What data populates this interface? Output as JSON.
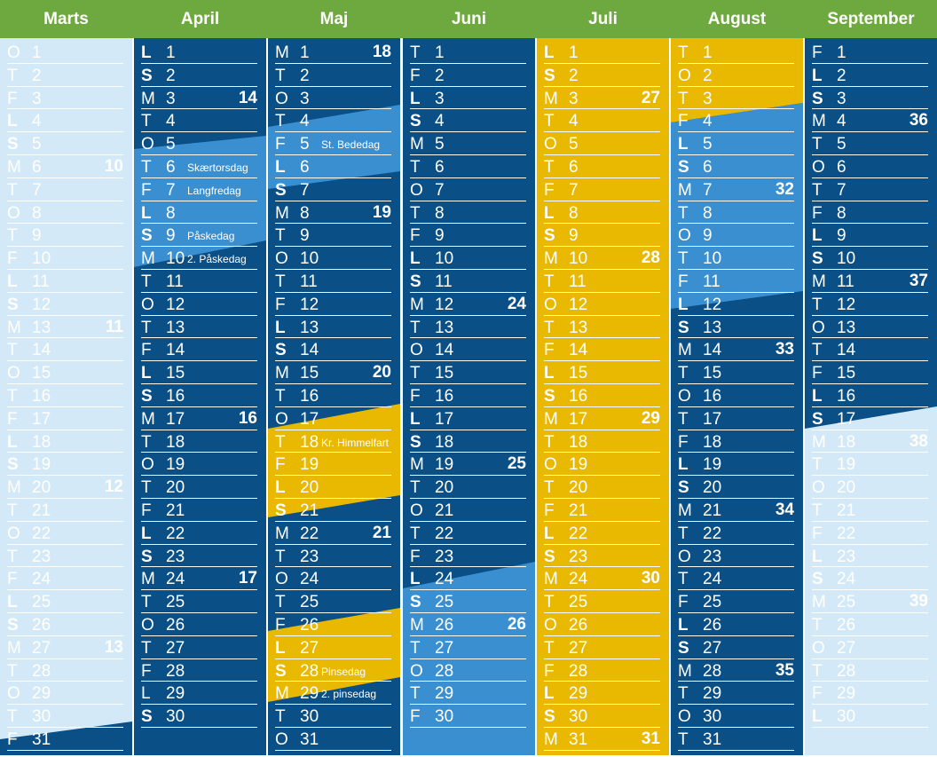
{
  "colors": {
    "green_header": "#6ea93f",
    "dark_blue": "#0a4f86",
    "mid_blue": "#3a8fd0",
    "light_blue": "#d3e9f7",
    "yellow": "#e9b800",
    "white": "#ffffff"
  },
  "months": [
    {
      "name": "Marts",
      "bg": "light",
      "days": [
        {
          "wd": "O",
          "d": "1"
        },
        {
          "wd": "T",
          "d": "2"
        },
        {
          "wd": "F",
          "d": "3"
        },
        {
          "wd": "L",
          "d": "4",
          "b": true
        },
        {
          "wd": "S",
          "d": "5",
          "b": true
        },
        {
          "wd": "M",
          "d": "6",
          "wk": "10"
        },
        {
          "wd": "T",
          "d": "7"
        },
        {
          "wd": "O",
          "d": "8"
        },
        {
          "wd": "T",
          "d": "9"
        },
        {
          "wd": "F",
          "d": "10"
        },
        {
          "wd": "L",
          "d": "11",
          "b": true
        },
        {
          "wd": "S",
          "d": "12",
          "b": true
        },
        {
          "wd": "M",
          "d": "13",
          "wk": "11"
        },
        {
          "wd": "T",
          "d": "14"
        },
        {
          "wd": "O",
          "d": "15"
        },
        {
          "wd": "T",
          "d": "16"
        },
        {
          "wd": "F",
          "d": "17"
        },
        {
          "wd": "L",
          "d": "18",
          "b": true
        },
        {
          "wd": "S",
          "d": "19",
          "b": true
        },
        {
          "wd": "M",
          "d": "20",
          "wk": "12"
        },
        {
          "wd": "T",
          "d": "21"
        },
        {
          "wd": "O",
          "d": "22"
        },
        {
          "wd": "T",
          "d": "23"
        },
        {
          "wd": "F",
          "d": "24"
        },
        {
          "wd": "L",
          "d": "25",
          "b": true
        },
        {
          "wd": "S",
          "d": "26",
          "b": true
        },
        {
          "wd": "M",
          "d": "27",
          "wk": "13"
        },
        {
          "wd": "T",
          "d": "28"
        },
        {
          "wd": "O",
          "d": "29"
        },
        {
          "wd": "T",
          "d": "30"
        },
        {
          "wd": "F",
          "d": "31"
        }
      ]
    },
    {
      "name": "April",
      "bg": "dark",
      "days": [
        {
          "wd": "L",
          "d": "1",
          "b": true
        },
        {
          "wd": "S",
          "d": "2",
          "b": true
        },
        {
          "wd": "M",
          "d": "3",
          "wk": "14"
        },
        {
          "wd": "T",
          "d": "4"
        },
        {
          "wd": "O",
          "d": "5"
        },
        {
          "wd": "T",
          "d": "6",
          "h": "Skærtorsdag"
        },
        {
          "wd": "F",
          "d": "7",
          "h": "Langfredag"
        },
        {
          "wd": "L",
          "d": "8",
          "b": true
        },
        {
          "wd": "S",
          "d": "9",
          "b": true,
          "h": "Påskedag"
        },
        {
          "wd": "M",
          "d": "10",
          "h": "2. Påskedag"
        },
        {
          "wd": "T",
          "d": "11"
        },
        {
          "wd": "O",
          "d": "12"
        },
        {
          "wd": "T",
          "d": "13"
        },
        {
          "wd": "F",
          "d": "14"
        },
        {
          "wd": "L",
          "d": "15",
          "b": true
        },
        {
          "wd": "S",
          "d": "16",
          "b": true
        },
        {
          "wd": "M",
          "d": "17",
          "wk": "16"
        },
        {
          "wd": "T",
          "d": "18"
        },
        {
          "wd": "O",
          "d": "19"
        },
        {
          "wd": "T",
          "d": "20"
        },
        {
          "wd": "F",
          "d": "21"
        },
        {
          "wd": "L",
          "d": "22",
          "b": true
        },
        {
          "wd": "S",
          "d": "23",
          "b": true
        },
        {
          "wd": "M",
          "d": "24",
          "wk": "17"
        },
        {
          "wd": "T",
          "d": "25"
        },
        {
          "wd": "O",
          "d": "26"
        },
        {
          "wd": "T",
          "d": "27"
        },
        {
          "wd": "F",
          "d": "28"
        },
        {
          "wd": "L",
          "d": "29"
        },
        {
          "wd": "S",
          "d": "30",
          "b": true
        }
      ]
    },
    {
      "name": "Maj",
      "bg": "dark",
      "days": [
        {
          "wd": "M",
          "d": "1",
          "wk": "18"
        },
        {
          "wd": "T",
          "d": "2"
        },
        {
          "wd": "O",
          "d": "3"
        },
        {
          "wd": "T",
          "d": "4"
        },
        {
          "wd": "F",
          "d": "5",
          "h": "St. Bededag"
        },
        {
          "wd": "L",
          "d": "6",
          "b": true
        },
        {
          "wd": "S",
          "d": "7",
          "b": true
        },
        {
          "wd": "M",
          "d": "8",
          "wk": "19"
        },
        {
          "wd": "T",
          "d": "9"
        },
        {
          "wd": "O",
          "d": "10"
        },
        {
          "wd": "T",
          "d": "11"
        },
        {
          "wd": "F",
          "d": "12"
        },
        {
          "wd": "L",
          "d": "13",
          "b": true
        },
        {
          "wd": "S",
          "d": "14",
          "b": true
        },
        {
          "wd": "M",
          "d": "15",
          "wk": "20"
        },
        {
          "wd": "T",
          "d": "16"
        },
        {
          "wd": "O",
          "d": "17"
        },
        {
          "wd": "T",
          "d": "18",
          "h": "Kr. Himmelfart"
        },
        {
          "wd": "F",
          "d": "19"
        },
        {
          "wd": "L",
          "d": "20",
          "b": true
        },
        {
          "wd": "S",
          "d": "21",
          "b": true
        },
        {
          "wd": "M",
          "d": "22",
          "wk": "21"
        },
        {
          "wd": "T",
          "d": "23"
        },
        {
          "wd": "O",
          "d": "24"
        },
        {
          "wd": "T",
          "d": "25"
        },
        {
          "wd": "F",
          "d": "26"
        },
        {
          "wd": "L",
          "d": "27",
          "b": true
        },
        {
          "wd": "S",
          "d": "28",
          "b": true,
          "h": "Pinsedag"
        },
        {
          "wd": "M",
          "d": "29",
          "h": "2. pinsedag"
        },
        {
          "wd": "T",
          "d": "30"
        },
        {
          "wd": "O",
          "d": "31"
        }
      ]
    },
    {
      "name": "Juni",
      "bg": "dark",
      "days": [
        {
          "wd": "T",
          "d": "1"
        },
        {
          "wd": "F",
          "d": "2"
        },
        {
          "wd": "L",
          "d": "3",
          "b": true
        },
        {
          "wd": "S",
          "d": "4",
          "b": true
        },
        {
          "wd": "M",
          "d": "5"
        },
        {
          "wd": "T",
          "d": "6"
        },
        {
          "wd": "O",
          "d": "7"
        },
        {
          "wd": "T",
          "d": "8"
        },
        {
          "wd": "F",
          "d": "9"
        },
        {
          "wd": "L",
          "d": "10",
          "b": true
        },
        {
          "wd": "S",
          "d": "11",
          "b": true
        },
        {
          "wd": "M",
          "d": "12",
          "wk": "24"
        },
        {
          "wd": "T",
          "d": "13"
        },
        {
          "wd": "O",
          "d": "14"
        },
        {
          "wd": "T",
          "d": "15"
        },
        {
          "wd": "F",
          "d": "16"
        },
        {
          "wd": "L",
          "d": "17",
          "b": true
        },
        {
          "wd": "S",
          "d": "18",
          "b": true
        },
        {
          "wd": "M",
          "d": "19",
          "wk": "25"
        },
        {
          "wd": "T",
          "d": "20"
        },
        {
          "wd": "O",
          "d": "21"
        },
        {
          "wd": "T",
          "d": "22"
        },
        {
          "wd": "F",
          "d": "23"
        },
        {
          "wd": "L",
          "d": "24",
          "b": true
        },
        {
          "wd": "S",
          "d": "25",
          "b": true
        },
        {
          "wd": "M",
          "d": "26",
          "wk": "26"
        },
        {
          "wd": "T",
          "d": "27"
        },
        {
          "wd": "O",
          "d": "28"
        },
        {
          "wd": "T",
          "d": "29"
        },
        {
          "wd": "F",
          "d": "30"
        }
      ]
    },
    {
      "name": "Juli",
      "bg": "yellow",
      "days": [
        {
          "wd": "L",
          "d": "1",
          "b": true
        },
        {
          "wd": "S",
          "d": "2",
          "b": true
        },
        {
          "wd": "M",
          "d": "3",
          "wk": "27"
        },
        {
          "wd": "T",
          "d": "4"
        },
        {
          "wd": "O",
          "d": "5"
        },
        {
          "wd": "T",
          "d": "6"
        },
        {
          "wd": "F",
          "d": "7"
        },
        {
          "wd": "L",
          "d": "8",
          "b": true
        },
        {
          "wd": "S",
          "d": "9",
          "b": true
        },
        {
          "wd": "M",
          "d": "10",
          "wk": "28"
        },
        {
          "wd": "T",
          "d": "11"
        },
        {
          "wd": "O",
          "d": "12"
        },
        {
          "wd": "T",
          "d": "13"
        },
        {
          "wd": "F",
          "d": "14"
        },
        {
          "wd": "L",
          "d": "15",
          "b": true
        },
        {
          "wd": "S",
          "d": "16",
          "b": true
        },
        {
          "wd": "M",
          "d": "17",
          "wk": "29"
        },
        {
          "wd": "T",
          "d": "18"
        },
        {
          "wd": "O",
          "d": "19"
        },
        {
          "wd": "T",
          "d": "20"
        },
        {
          "wd": "F",
          "d": "21"
        },
        {
          "wd": "L",
          "d": "22",
          "b": true
        },
        {
          "wd": "S",
          "d": "23",
          "b": true
        },
        {
          "wd": "M",
          "d": "24",
          "wk": "30"
        },
        {
          "wd": "T",
          "d": "25"
        },
        {
          "wd": "O",
          "d": "26"
        },
        {
          "wd": "T",
          "d": "27"
        },
        {
          "wd": "F",
          "d": "28"
        },
        {
          "wd": "L",
          "d": "29",
          "b": true
        },
        {
          "wd": "S",
          "d": "30",
          "b": true
        },
        {
          "wd": "M",
          "d": "31",
          "wk": "31"
        }
      ]
    },
    {
      "name": "August",
      "bg": "dark",
      "days": [
        {
          "wd": "T",
          "d": "1"
        },
        {
          "wd": "O",
          "d": "2"
        },
        {
          "wd": "T",
          "d": "3"
        },
        {
          "wd": "F",
          "d": "4"
        },
        {
          "wd": "L",
          "d": "5",
          "b": true
        },
        {
          "wd": "S",
          "d": "6",
          "b": true
        },
        {
          "wd": "M",
          "d": "7",
          "wk": "32"
        },
        {
          "wd": "T",
          "d": "8"
        },
        {
          "wd": "O",
          "d": "9"
        },
        {
          "wd": "T",
          "d": "10"
        },
        {
          "wd": "F",
          "d": "11"
        },
        {
          "wd": "L",
          "d": "12",
          "b": true
        },
        {
          "wd": "S",
          "d": "13",
          "b": true
        },
        {
          "wd": "M",
          "d": "14",
          "wk": "33"
        },
        {
          "wd": "T",
          "d": "15"
        },
        {
          "wd": "O",
          "d": "16"
        },
        {
          "wd": "T",
          "d": "17"
        },
        {
          "wd": "F",
          "d": "18"
        },
        {
          "wd": "L",
          "d": "19",
          "b": true
        },
        {
          "wd": "S",
          "d": "20",
          "b": true
        },
        {
          "wd": "M",
          "d": "21",
          "wk": "34"
        },
        {
          "wd": "T",
          "d": "22"
        },
        {
          "wd": "O",
          "d": "23"
        },
        {
          "wd": "T",
          "d": "24"
        },
        {
          "wd": "F",
          "d": "25"
        },
        {
          "wd": "L",
          "d": "26",
          "b": true
        },
        {
          "wd": "S",
          "d": "27",
          "b": true
        },
        {
          "wd": "M",
          "d": "28",
          "wk": "35"
        },
        {
          "wd": "T",
          "d": "29"
        },
        {
          "wd": "O",
          "d": "30"
        },
        {
          "wd": "T",
          "d": "31"
        }
      ]
    },
    {
      "name": "September",
      "bg": "dark",
      "days": [
        {
          "wd": "F",
          "d": "1"
        },
        {
          "wd": "L",
          "d": "2",
          "b": true
        },
        {
          "wd": "S",
          "d": "3",
          "b": true
        },
        {
          "wd": "M",
          "d": "4",
          "wk": "36"
        },
        {
          "wd": "T",
          "d": "5"
        },
        {
          "wd": "O",
          "d": "6"
        },
        {
          "wd": "T",
          "d": "7"
        },
        {
          "wd": "F",
          "d": "8"
        },
        {
          "wd": "L",
          "d": "9",
          "b": true
        },
        {
          "wd": "S",
          "d": "10",
          "b": true
        },
        {
          "wd": "M",
          "d": "11",
          "wk": "37"
        },
        {
          "wd": "T",
          "d": "12"
        },
        {
          "wd": "O",
          "d": "13"
        },
        {
          "wd": "T",
          "d": "14"
        },
        {
          "wd": "F",
          "d": "15"
        },
        {
          "wd": "L",
          "d": "16",
          "b": true
        },
        {
          "wd": "S",
          "d": "17",
          "b": true
        },
        {
          "wd": "M",
          "d": "18",
          "wk": "38"
        },
        {
          "wd": "T",
          "d": "19"
        },
        {
          "wd": "O",
          "d": "20"
        },
        {
          "wd": "T",
          "d": "21"
        },
        {
          "wd": "F",
          "d": "22"
        },
        {
          "wd": "L",
          "d": "23",
          "b": true
        },
        {
          "wd": "S",
          "d": "24",
          "b": true
        },
        {
          "wd": "M",
          "d": "25",
          "wk": "39"
        },
        {
          "wd": "T",
          "d": "26"
        },
        {
          "wd": "O",
          "d": "27"
        },
        {
          "wd": "T",
          "d": "28"
        },
        {
          "wd": "F",
          "d": "29"
        },
        {
          "wd": "L",
          "d": "30",
          "b": true
        }
      ]
    }
  ]
}
